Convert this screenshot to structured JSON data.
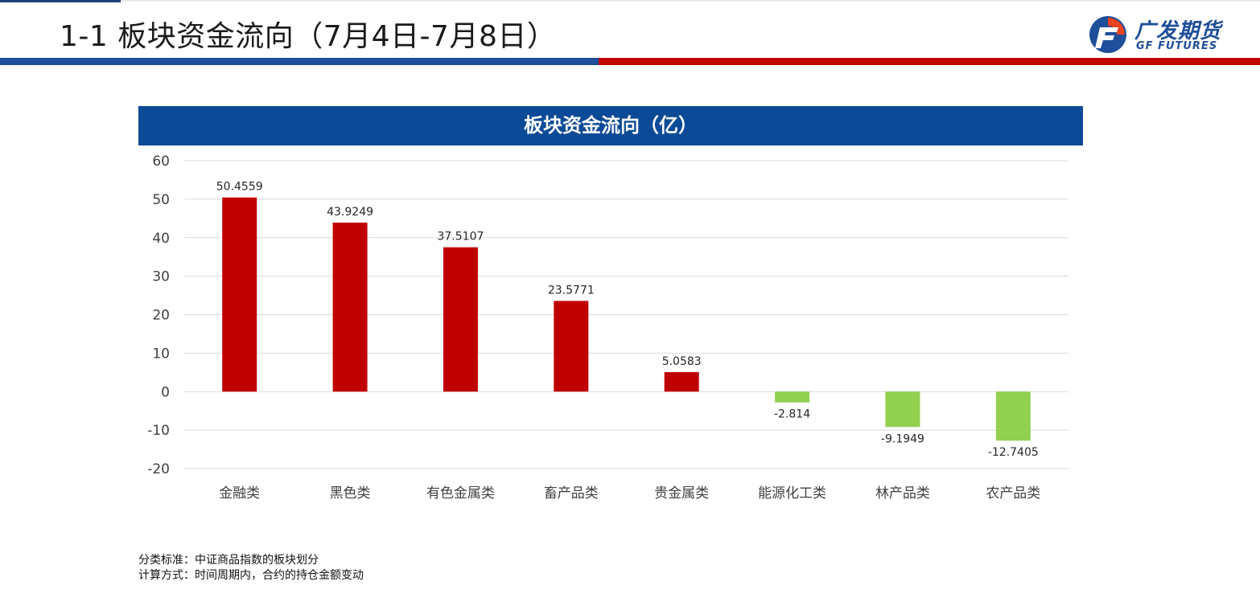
{
  "page": {
    "title": "1-1  板块资金流向（7月4日-7月8日）"
  },
  "logo": {
    "name_cn": "广发期货",
    "name_en": "GF FUTURES",
    "colors": {
      "blue": "#1f4e9a",
      "red": "#c00000"
    }
  },
  "chart_data": {
    "type": "bar",
    "title": "板块资金流向（亿）",
    "categories": [
      "金融类",
      "黑色类",
      "有色金属类",
      "畜产品类",
      "贵金属类",
      "能源化工类",
      "林产品类",
      "农产品类"
    ],
    "values": [
      50.4559,
      43.9249,
      37.5107,
      23.5771,
      5.0583,
      -2.814,
      -9.1949,
      -12.7405
    ],
    "value_labels": [
      "50.4559",
      "43.9249",
      "37.5107",
      "23.5771",
      "5.0583",
      "-2.814",
      "-9.1949",
      "-12.7405"
    ],
    "ylim": [
      -20,
      60
    ],
    "yticks": [
      60,
      50,
      40,
      30,
      20,
      10,
      0,
      -10,
      -20
    ],
    "xlabel": "",
    "ylabel": "",
    "grid": true,
    "legend": "none",
    "colors": {
      "positive": "#c00000",
      "negative": "#92d050",
      "header": "#0b4a96"
    }
  },
  "notes": {
    "line1": "分类标准：中证商品指数的板块划分",
    "line2": "计算方式：时间周期内，合约的持仓金额变动"
  }
}
